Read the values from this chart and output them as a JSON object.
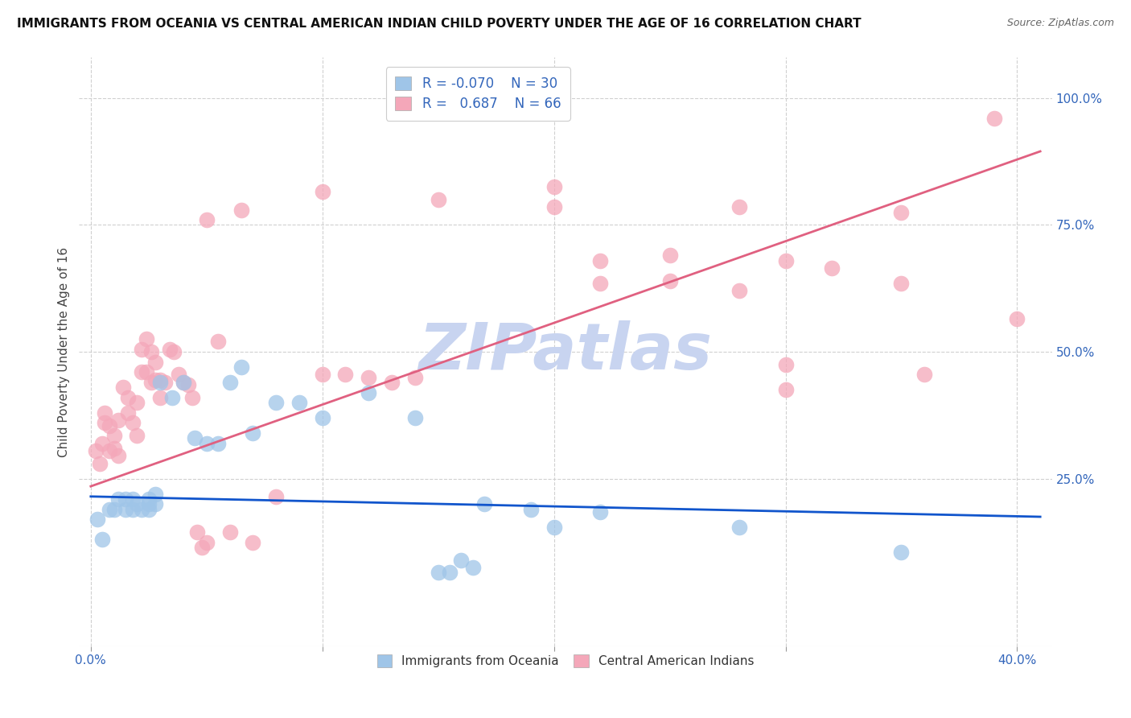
{
  "title": "IMMIGRANTS FROM OCEANIA VS CENTRAL AMERICAN INDIAN CHILD POVERTY UNDER THE AGE OF 16 CORRELATION CHART",
  "source": "Source: ZipAtlas.com",
  "ylabel": "Child Poverty Under the Age of 16",
  "xlabel_tick_vals": [
    0.0,
    0.1,
    0.2,
    0.3,
    0.4
  ],
  "ylabel_tick_vals": [
    0.25,
    0.5,
    0.75,
    1.0
  ],
  "ylabel_tick_labels": [
    "25.0%",
    "50.0%",
    "75.0%",
    "100.0%"
  ],
  "xlim": [
    -0.005,
    0.415
  ],
  "ylim": [
    -0.08,
    1.08
  ],
  "legend_label1": "Immigrants from Oceania",
  "legend_label2": "Central American Indians",
  "blue_color": "#9fc5e8",
  "pink_color": "#f4a7b9",
  "blue_line_color": "#1155cc",
  "pink_line_color": "#e06080",
  "watermark_color": "#c8d4f0",
  "background_color": "#ffffff",
  "grid_color": "#d0d0d0",
  "blue_line_x0": 0.0,
  "blue_line_y0": 0.215,
  "blue_line_x1": 0.41,
  "blue_line_y1": 0.175,
  "pink_line_x0": 0.0,
  "pink_line_y0": 0.235,
  "pink_line_x1": 0.41,
  "pink_line_y1": 0.895,
  "oceania_points": [
    [
      0.003,
      0.17
    ],
    [
      0.005,
      0.13
    ],
    [
      0.008,
      0.19
    ],
    [
      0.01,
      0.19
    ],
    [
      0.012,
      0.21
    ],
    [
      0.015,
      0.19
    ],
    [
      0.015,
      0.21
    ],
    [
      0.018,
      0.19
    ],
    [
      0.018,
      0.21
    ],
    [
      0.02,
      0.2
    ],
    [
      0.022,
      0.19
    ],
    [
      0.025,
      0.2
    ],
    [
      0.025,
      0.19
    ],
    [
      0.025,
      0.21
    ],
    [
      0.028,
      0.22
    ],
    [
      0.028,
      0.2
    ],
    [
      0.03,
      0.44
    ],
    [
      0.035,
      0.41
    ],
    [
      0.04,
      0.44
    ],
    [
      0.045,
      0.33
    ],
    [
      0.05,
      0.32
    ],
    [
      0.055,
      0.32
    ],
    [
      0.06,
      0.44
    ],
    [
      0.065,
      0.47
    ],
    [
      0.07,
      0.34
    ],
    [
      0.08,
      0.4
    ],
    [
      0.09,
      0.4
    ],
    [
      0.1,
      0.37
    ],
    [
      0.12,
      0.42
    ],
    [
      0.14,
      0.37
    ],
    [
      0.15,
      0.065
    ],
    [
      0.16,
      0.09
    ],
    [
      0.17,
      0.2
    ],
    [
      0.19,
      0.19
    ],
    [
      0.2,
      0.155
    ],
    [
      0.22,
      0.185
    ],
    [
      0.155,
      0.065
    ],
    [
      0.165,
      0.075
    ],
    [
      0.28,
      0.155
    ],
    [
      0.35,
      0.105
    ]
  ],
  "central_points": [
    [
      0.002,
      0.305
    ],
    [
      0.004,
      0.28
    ],
    [
      0.006,
      0.36
    ],
    [
      0.008,
      0.355
    ],
    [
      0.01,
      0.335
    ],
    [
      0.012,
      0.365
    ],
    [
      0.012,
      0.295
    ],
    [
      0.014,
      0.43
    ],
    [
      0.016,
      0.41
    ],
    [
      0.016,
      0.38
    ],
    [
      0.018,
      0.36
    ],
    [
      0.02,
      0.4
    ],
    [
      0.02,
      0.335
    ],
    [
      0.022,
      0.46
    ],
    [
      0.022,
      0.505
    ],
    [
      0.024,
      0.525
    ],
    [
      0.024,
      0.46
    ],
    [
      0.026,
      0.5
    ],
    [
      0.026,
      0.44
    ],
    [
      0.028,
      0.48
    ],
    [
      0.028,
      0.445
    ],
    [
      0.03,
      0.41
    ],
    [
      0.03,
      0.445
    ],
    [
      0.032,
      0.44
    ],
    [
      0.034,
      0.505
    ],
    [
      0.036,
      0.5
    ],
    [
      0.038,
      0.455
    ],
    [
      0.04,
      0.44
    ],
    [
      0.042,
      0.435
    ],
    [
      0.044,
      0.41
    ],
    [
      0.046,
      0.145
    ],
    [
      0.048,
      0.115
    ],
    [
      0.05,
      0.125
    ],
    [
      0.06,
      0.145
    ],
    [
      0.07,
      0.125
    ],
    [
      0.08,
      0.215
    ],
    [
      0.005,
      0.32
    ],
    [
      0.006,
      0.38
    ],
    [
      0.008,
      0.305
    ],
    [
      0.01,
      0.31
    ],
    [
      0.05,
      0.76
    ],
    [
      0.055,
      0.52
    ],
    [
      0.065,
      0.78
    ],
    [
      0.1,
      0.455
    ],
    [
      0.1,
      0.815
    ],
    [
      0.11,
      0.455
    ],
    [
      0.12,
      0.45
    ],
    [
      0.13,
      0.44
    ],
    [
      0.14,
      0.45
    ],
    [
      0.15,
      0.8
    ],
    [
      0.2,
      0.825
    ],
    [
      0.2,
      0.785
    ],
    [
      0.22,
      0.68
    ],
    [
      0.22,
      0.635
    ],
    [
      0.25,
      0.69
    ],
    [
      0.25,
      0.64
    ],
    [
      0.28,
      0.62
    ],
    [
      0.28,
      0.785
    ],
    [
      0.3,
      0.68
    ],
    [
      0.3,
      0.475
    ],
    [
      0.3,
      0.425
    ],
    [
      0.32,
      0.665
    ],
    [
      0.35,
      0.775
    ],
    [
      0.35,
      0.635
    ],
    [
      0.36,
      0.455
    ],
    [
      0.39,
      0.96
    ],
    [
      0.4,
      0.565
    ]
  ]
}
